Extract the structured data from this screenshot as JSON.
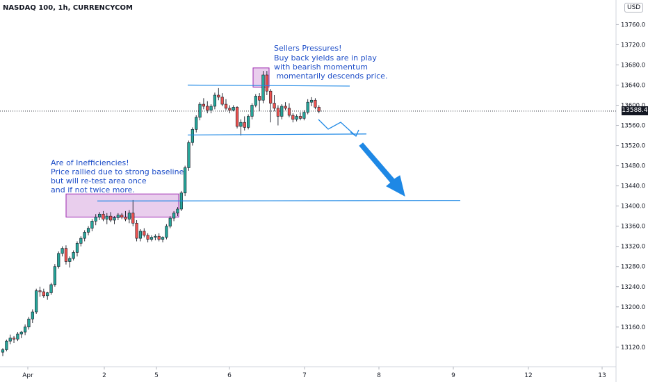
{
  "title": "NASDAQ 100, 1h, CURRENCYCOM",
  "currency_badge": "USD",
  "current_price": "13588.4",
  "colors": {
    "up": "#26a69a",
    "down": "#ef5350",
    "wick": "#131722",
    "annot": "#1e88e5",
    "zone_fill": "#e1bee7",
    "zone_stroke": "#9c27b0",
    "note_text": "#1e4ec8"
  },
  "chart_data": {
    "type": "candlestick",
    "title": "NASDAQ 100, 1h, CURRENCYCOM",
    "ylim": [
      13095,
      13795
    ],
    "y_ticks": [
      "13120.0",
      "13160.0",
      "13200.0",
      "13240.0",
      "13280.0",
      "13320.0",
      "13360.0",
      "13400.0",
      "13440.0",
      "13480.0",
      "13520.0",
      "13560.0",
      "13600.0",
      "13640.0",
      "13680.0",
      "13720.0",
      "13760.0"
    ],
    "x_ticks": [
      "Apr",
      "2",
      "5",
      "6",
      "7",
      "8",
      "9",
      "12",
      "13"
    ],
    "candles_ohlc": [
      [
        13110,
        13118,
        13102,
        13115
      ],
      [
        13115,
        13135,
        13112,
        13132
      ],
      [
        13132,
        13145,
        13126,
        13138
      ],
      [
        13138,
        13142,
        13128,
        13136
      ],
      [
        13136,
        13150,
        13132,
        13146
      ],
      [
        13146,
        13152,
        13138,
        13150
      ],
      [
        13150,
        13165,
        13144,
        13160
      ],
      [
        13160,
        13180,
        13155,
        13176
      ],
      [
        13176,
        13195,
        13168,
        13190
      ],
      [
        13190,
        13236,
        13186,
        13232
      ],
      [
        13232,
        13240,
        13220,
        13230
      ],
      [
        13230,
        13236,
        13218,
        13222
      ],
      [
        13222,
        13230,
        13214,
        13228
      ],
      [
        13228,
        13248,
        13224,
        13244
      ],
      [
        13244,
        13285,
        13240,
        13280
      ],
      [
        13280,
        13310,
        13276,
        13306
      ],
      [
        13306,
        13320,
        13300,
        13316
      ],
      [
        13316,
        13322,
        13284,
        13290
      ],
      [
        13290,
        13300,
        13278,
        13296
      ],
      [
        13296,
        13312,
        13292,
        13308
      ],
      [
        13308,
        13330,
        13300,
        13326
      ],
      [
        13326,
        13340,
        13320,
        13336
      ],
      [
        13336,
        13352,
        13330,
        13348
      ],
      [
        13348,
        13360,
        13342,
        13356
      ],
      [
        13356,
        13374,
        13350,
        13370
      ],
      [
        13370,
        13384,
        13362,
        13378
      ],
      [
        13378,
        13388,
        13372,
        13384
      ],
      [
        13384,
        13390,
        13370,
        13374
      ],
      [
        13374,
        13386,
        13364,
        13380
      ],
      [
        13380,
        13388,
        13368,
        13372
      ],
      [
        13372,
        13380,
        13364,
        13377
      ],
      [
        13377,
        13386,
        13372,
        13382
      ],
      [
        13382,
        13386,
        13374,
        13378
      ],
      [
        13378,
        13390,
        13370,
        13374
      ],
      [
        13374,
        13392,
        13366,
        13386
      ],
      [
        13386,
        13412,
        13360,
        13366
      ],
      [
        13366,
        13372,
        13330,
        13336
      ],
      [
        13336,
        13354,
        13330,
        13350
      ],
      [
        13350,
        13356,
        13338,
        13342
      ],
      [
        13342,
        13346,
        13328,
        13334
      ],
      [
        13334,
        13342,
        13330,
        13338
      ],
      [
        13338,
        13344,
        13332,
        13340
      ],
      [
        13340,
        13346,
        13330,
        13334
      ],
      [
        13334,
        13340,
        13328,
        13338
      ],
      [
        13338,
        13364,
        13334,
        13360
      ],
      [
        13360,
        13380,
        13356,
        13376
      ],
      [
        13376,
        13390,
        13370,
        13386
      ],
      [
        13386,
        13398,
        13380,
        13394
      ],
      [
        13394,
        13430,
        13390,
        13426
      ],
      [
        13426,
        13480,
        13420,
        13476
      ],
      [
        13476,
        13530,
        13470,
        13526
      ],
      [
        13526,
        13556,
        13520,
        13552
      ],
      [
        13552,
        13580,
        13546,
        13576
      ],
      [
        13576,
        13606,
        13570,
        13602
      ],
      [
        13602,
        13614,
        13592,
        13598
      ],
      [
        13598,
        13608,
        13584,
        13590
      ],
      [
        13590,
        13602,
        13584,
        13598
      ],
      [
        13598,
        13625,
        13592,
        13620
      ],
      [
        13620,
        13634,
        13610,
        13616
      ],
      [
        13616,
        13624,
        13598,
        13602
      ],
      [
        13602,
        13612,
        13590,
        13594
      ],
      [
        13594,
        13600,
        13584,
        13590
      ],
      [
        13590,
        13600,
        13588,
        13596
      ],
      [
        13596,
        13598,
        13554,
        13558
      ],
      [
        13558,
        13572,
        13540,
        13566
      ],
      [
        13566,
        13578,
        13550,
        13556
      ],
      [
        13556,
        13582,
        13552,
        13578
      ],
      [
        13578,
        13604,
        13572,
        13600
      ],
      [
        13600,
        13622,
        13596,
        13618
      ],
      [
        13618,
        13624,
        13588,
        13610
      ],
      [
        13610,
        13668,
        13604,
        13660
      ],
      [
        13660,
        13668,
        13620,
        13628
      ],
      [
        13628,
        13632,
        13566,
        13604
      ],
      [
        13604,
        13620,
        13588,
        13594
      ],
      [
        13594,
        13600,
        13560,
        13578
      ],
      [
        13578,
        13602,
        13572,
        13598
      ],
      [
        13598,
        13606,
        13590,
        13594
      ],
      [
        13594,
        13604,
        13576,
        13580
      ],
      [
        13580,
        13584,
        13566,
        13572
      ],
      [
        13572,
        13582,
        13568,
        13578
      ],
      [
        13578,
        13586,
        13570,
        13574
      ],
      [
        13574,
        13590,
        13570,
        13586
      ],
      [
        13586,
        13612,
        13582,
        13606
      ],
      [
        13606,
        13616,
        13598,
        13610
      ],
      [
        13610,
        13614,
        13592,
        13596
      ],
      [
        13596,
        13600,
        13584,
        13588
      ]
    ],
    "current_price": 13588.4,
    "annotations": [
      "Sellers Pressures!",
      "Buy back yields are in play",
      "with bearish momentum",
      " momentarily descends price.",
      "Are of Inefficiencies!",
      "Price rallied due to strong baseline",
      "but will re-test area once",
      "and if not twice more."
    ]
  }
}
